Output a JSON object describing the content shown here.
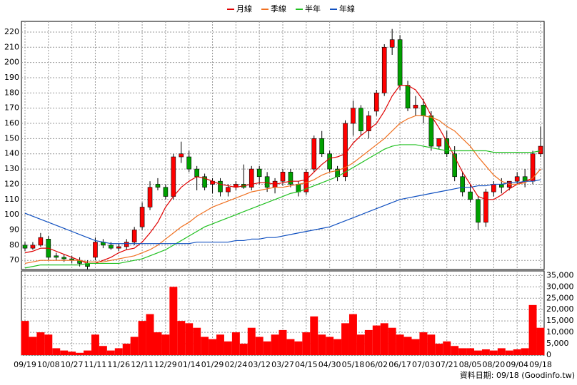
{
  "chart_data": {
    "type": "candlestick",
    "x": [
      "09/19",
      null,
      null,
      "10/08",
      null,
      null,
      "10/27",
      null,
      null,
      "11/11",
      null,
      null,
      "11/26",
      null,
      null,
      "12/11",
      null,
      null,
      "12/29",
      null,
      null,
      "01/14",
      null,
      null,
      "01/29",
      null,
      null,
      "02/24",
      null,
      null,
      "03/12",
      null,
      null,
      "03/27",
      null,
      null,
      "04/15",
      null,
      null,
      "04/30",
      null,
      null,
      "05/18",
      null,
      null,
      "06/02",
      null,
      null,
      "06/17",
      null,
      null,
      "07/03",
      null,
      null,
      "07/21",
      null,
      null,
      "08/05",
      null,
      null,
      "08/20",
      null,
      null,
      "09/04",
      null,
      null,
      "09/18"
    ],
    "open": [
      80,
      78,
      80,
      84,
      73,
      72,
      71,
      70,
      68,
      72,
      82,
      80,
      78,
      79,
      82,
      92,
      105,
      120,
      118,
      112,
      138,
      138,
      130,
      125,
      120,
      122,
      115,
      118,
      120,
      118,
      130,
      125,
      118,
      122,
      128,
      120,
      115,
      130,
      150,
      140,
      130,
      125,
      160,
      170,
      155,
      168,
      180,
      210,
      215,
      185,
      170,
      172,
      165,
      145,
      150,
      140,
      125,
      115,
      110,
      95,
      115,
      120,
      118,
      122,
      125,
      122,
      140
    ],
    "high": [
      82,
      82,
      88,
      86,
      75,
      74,
      73,
      72,
      70,
      85,
      84,
      82,
      81,
      84,
      92,
      108,
      122,
      124,
      120,
      140,
      148,
      142,
      132,
      127,
      124,
      124,
      120,
      122,
      133,
      132,
      132,
      128,
      124,
      130,
      130,
      122,
      130,
      152,
      155,
      142,
      132,
      162,
      175,
      172,
      168,
      182,
      212,
      222,
      218,
      188,
      178,
      176,
      168,
      150,
      155,
      145,
      128,
      120,
      112,
      117,
      122,
      124,
      122,
      128,
      130,
      142,
      158
    ],
    "low": [
      76,
      77,
      79,
      70,
      70,
      69,
      68,
      66,
      64,
      70,
      78,
      77,
      76,
      77,
      80,
      90,
      103,
      116,
      110,
      110,
      134,
      128,
      116,
      116,
      114,
      112,
      112,
      116,
      117,
      116,
      120,
      115,
      114,
      119,
      118,
      112,
      113,
      128,
      138,
      128,
      122,
      122,
      152,
      152,
      150,
      165,
      178,
      205,
      182,
      168,
      165,
      160,
      142,
      143,
      138,
      122,
      112,
      108,
      90,
      92,
      112,
      114,
      116,
      120,
      118,
      120,
      138
    ],
    "close": [
      78,
      80,
      85,
      72,
      72,
      71,
      70,
      68,
      66,
      82,
      80,
      78,
      79,
      82,
      90,
      105,
      118,
      118,
      112,
      138,
      140,
      130,
      125,
      118,
      122,
      115,
      118,
      120,
      118,
      130,
      125,
      118,
      122,
      128,
      120,
      115,
      128,
      150,
      140,
      130,
      125,
      160,
      170,
      155,
      165,
      180,
      210,
      215,
      185,
      170,
      172,
      165,
      145,
      150,
      140,
      125,
      115,
      110,
      95,
      115,
      120,
      118,
      122,
      125,
      122,
      140,
      145
    ],
    "up_color": "#ff0000",
    "down_color": "#00a000",
    "ylim": [
      64,
      227
    ],
    "yticks": [
      70,
      80,
      90,
      100,
      110,
      120,
      130,
      140,
      150,
      160,
      170,
      180,
      190,
      200,
      210,
      220
    ],
    "grid": true,
    "series": [
      {
        "name": "月線",
        "color": "#e00000",
        "values": [
          75,
          76,
          78,
          78,
          76,
          74,
          72,
          70,
          68,
          68,
          70,
          72,
          75,
          77,
          78,
          82,
          88,
          95,
          105,
          112,
          118,
          122,
          125,
          124,
          122,
          120,
          119,
          118,
          119,
          120,
          121,
          121,
          120,
          121,
          122,
          122,
          123,
          128,
          133,
          137,
          138,
          140,
          147,
          152,
          156,
          160,
          168,
          178,
          185,
          185,
          182,
          175,
          165,
          157,
          148,
          138,
          128,
          120,
          112,
          110,
          110,
          113,
          117,
          120,
          122,
          124,
          130
        ]
      },
      {
        "name": "季線",
        "color": "#f07020",
        "values": [
          68,
          69,
          70,
          70,
          70,
          70,
          70,
          70,
          69,
          69,
          69,
          70,
          71,
          72,
          73,
          75,
          77,
          80,
          84,
          88,
          92,
          95,
          99,
          102,
          105,
          107,
          109,
          111,
          113,
          115,
          116,
          117,
          118,
          118,
          119,
          120,
          121,
          123,
          126,
          128,
          129,
          131,
          134,
          138,
          142,
          146,
          150,
          155,
          160,
          163,
          165,
          165,
          164,
          162,
          158,
          155,
          150,
          145,
          138,
          132,
          126,
          122,
          120,
          120,
          121,
          124,
          130
        ]
      },
      {
        "name": "半年",
        "color": "#20c020",
        "values": [
          65,
          66,
          67,
          67,
          67,
          67,
          67,
          67,
          68,
          68,
          68,
          68,
          68,
          69,
          70,
          71,
          73,
          75,
          77,
          80,
          83,
          86,
          89,
          92,
          94,
          96,
          98,
          100,
          102,
          104,
          106,
          108,
          110,
          112,
          114,
          115,
          117,
          119,
          121,
          123,
          125,
          128,
          131,
          134,
          137,
          140,
          143,
          145,
          146,
          146,
          146,
          145,
          144,
          143,
          142,
          142,
          142,
          142,
          142,
          142,
          141,
          141,
          141,
          141,
          141,
          141,
          142
        ]
      },
      {
        "name": "年線",
        "color": "#1050c0",
        "values": [
          101,
          99,
          97,
          95,
          93,
          91,
          89,
          87,
          85,
          83,
          82,
          81,
          81,
          81,
          81,
          81,
          81,
          81,
          81,
          81,
          81,
          81,
          82,
          82,
          82,
          82,
          82,
          83,
          83,
          84,
          84,
          85,
          85,
          86,
          87,
          88,
          89,
          90,
          91,
          92,
          94,
          96,
          98,
          100,
          102,
          104,
          106,
          108,
          110,
          111,
          112,
          113,
          114,
          115,
          116,
          117,
          118,
          118,
          119,
          119,
          120,
          120,
          121,
          121,
          122,
          122,
          123
        ]
      }
    ],
    "volume": {
      "color": "#ff0000",
      "ylim": [
        0,
        37000
      ],
      "yticks": [
        0,
        {
          "value": 5000,
          "label": "5,000"
        },
        {
          "value": 10000,
          "label": "10,000"
        },
        {
          "value": 15000,
          "label": "15,000"
        },
        {
          "value": 20000,
          "label": "20,000"
        },
        {
          "value": 25000,
          "label": "25,000"
        },
        {
          "value": 30000,
          "label": "30,000"
        },
        {
          "value": 35000,
          "label": "35,000"
        }
      ],
      "values": [
        15000,
        8000,
        10000,
        9000,
        3000,
        2000,
        1500,
        1000,
        2000,
        9000,
        4000,
        2000,
        3000,
        5000,
        8000,
        15000,
        18000,
        10000,
        9000,
        30000,
        15000,
        14000,
        12000,
        8000,
        7000,
        9000,
        6000,
        10000,
        5000,
        12000,
        8000,
        6000,
        9000,
        11000,
        7000,
        6000,
        10000,
        17000,
        9000,
        8000,
        7000,
        14000,
        18000,
        9000,
        11000,
        13000,
        14000,
        12000,
        9000,
        8000,
        7000,
        10000,
        9000,
        5000,
        6000,
        4000,
        3000,
        3000,
        2000,
        2500,
        2000,
        3000,
        2000,
        2500,
        3000,
        22000,
        12000
      ]
    },
    "footnote": "資料日期: 09/18 (Goodinfo.tw)"
  }
}
